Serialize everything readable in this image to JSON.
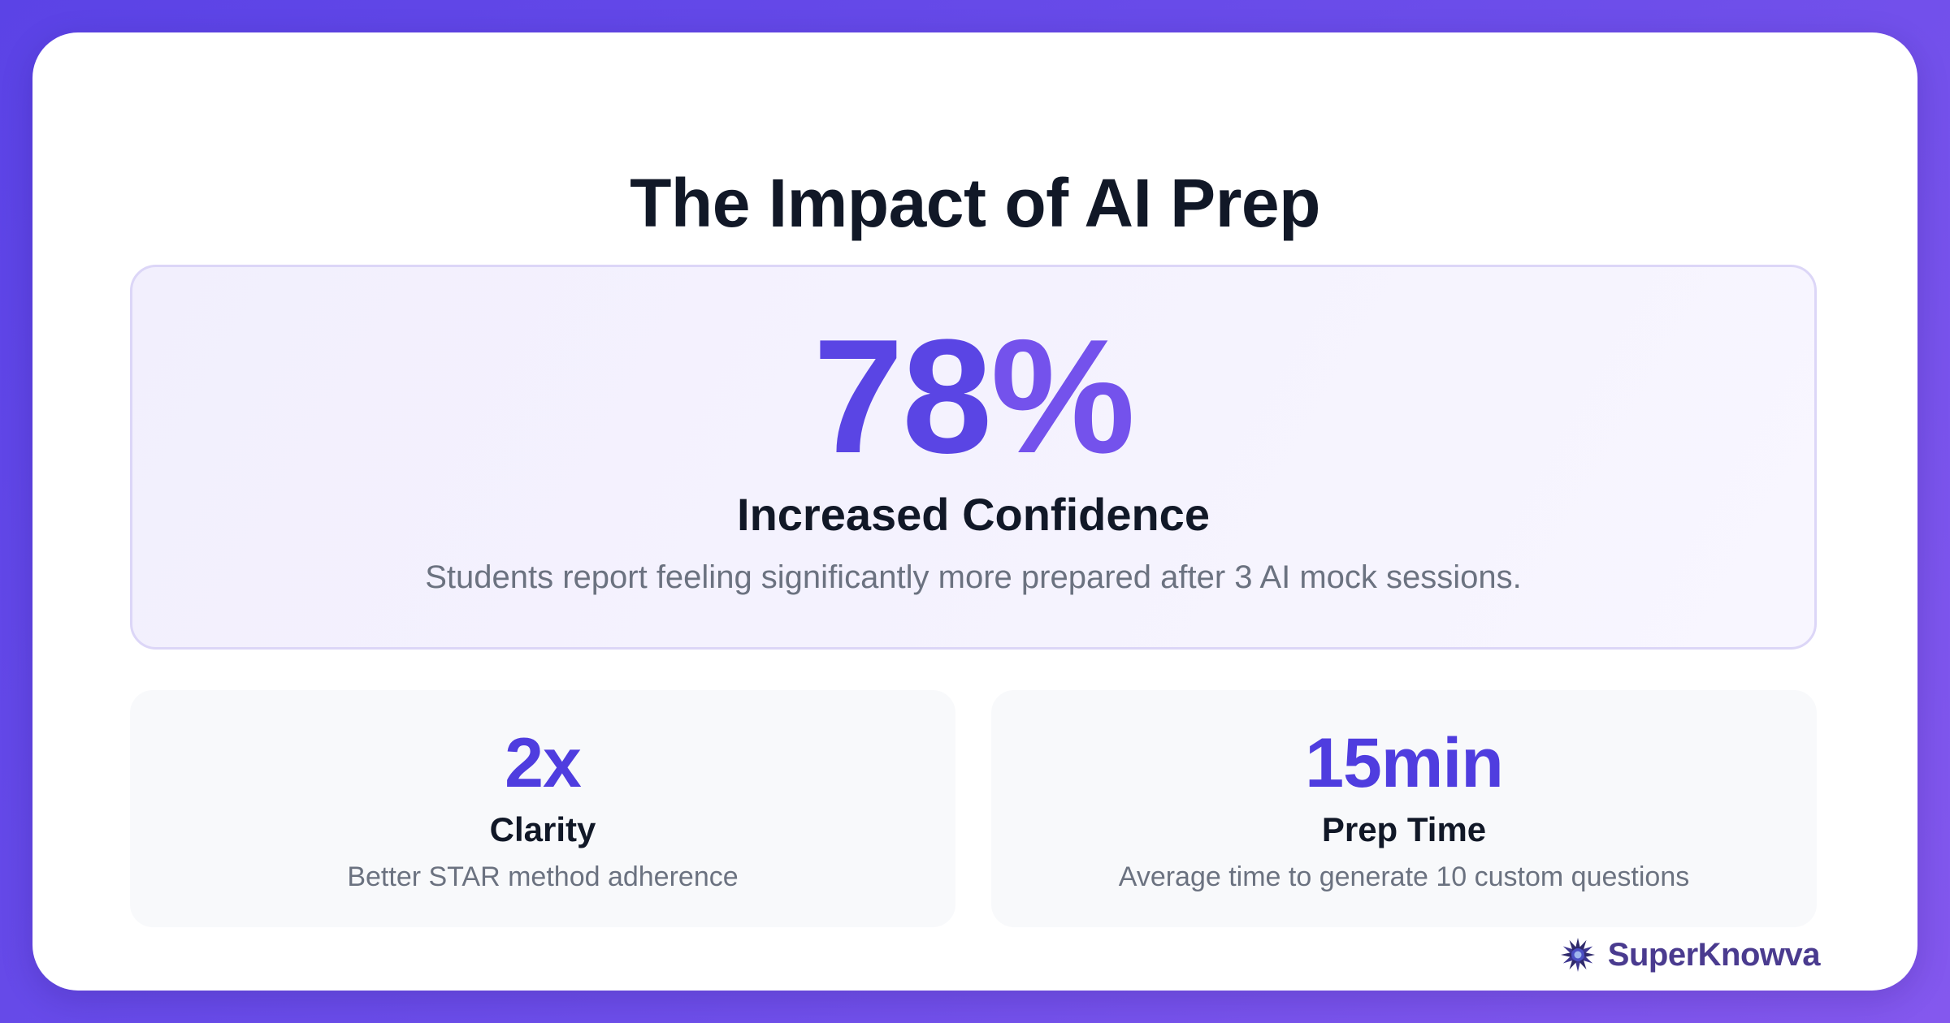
{
  "title": "The Impact of AI Prep",
  "hero": {
    "value": "78",
    "unit": "%",
    "label": "Increased Confidence",
    "description": "Students report feeling significantly more prepared after 3 AI mock sessions."
  },
  "stats": [
    {
      "value": "2x",
      "label": "Clarity",
      "description": "Better STAR method adherence"
    },
    {
      "value": "15min",
      "label": "Prep Time",
      "description": "Average time to generate 10 custom questions"
    }
  ],
  "brand": {
    "name": "SuperKnowva",
    "icon": "starburst-logo-icon"
  },
  "colors": {
    "accent": "#5a45e4",
    "accent_light": "#7452ec",
    "heading": "#111827",
    "muted": "#6b7280",
    "brand": "#4a3b8f"
  }
}
